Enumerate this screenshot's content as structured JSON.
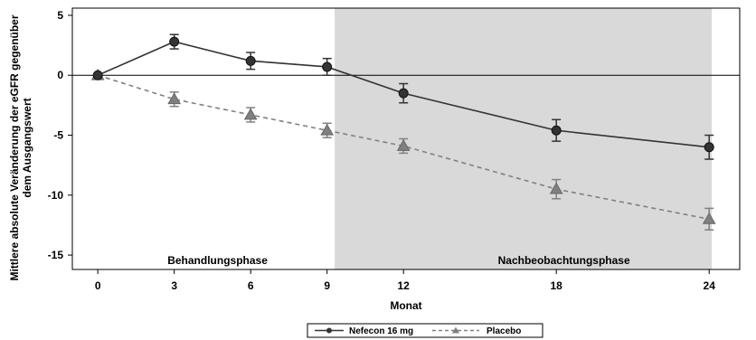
{
  "chart_data": {
    "type": "line",
    "xlabel": "Monat",
    "ylabel_lines": [
      "Mittlere absolute Veränderung der eGFR gegenüber",
      "dem Ausgangswert"
    ],
    "xlim": [
      -1,
      25.2
    ],
    "ylim": [
      -16.2,
      5.6
    ],
    "x_ticks": [
      0,
      3,
      6,
      9,
      12,
      18,
      24
    ],
    "x_tick_labels": [
      "0",
      "3",
      "6",
      "9",
      "12",
      "18",
      "24"
    ],
    "y_ticks": [
      5,
      0,
      -5,
      -10,
      -15
    ],
    "y_tick_labels": [
      "5",
      "0",
      "-5",
      "-10",
      "-15"
    ],
    "reference_line_y": 0,
    "shaded_region": {
      "x_start": 9.3,
      "x_end": 24.1,
      "color": "#d9d9d9"
    },
    "phase_labels": [
      {
        "text": "Behandlungsphase",
        "x": 4.7
      },
      {
        "text": "Nachbeobachtungsphase",
        "x": 18.3
      }
    ],
    "series": [
      {
        "name": "Nefecon 16 mg",
        "marker": "circle",
        "line_style": "solid",
        "color": "#333333",
        "x": [
          0,
          3,
          6,
          9,
          12,
          18,
          24
        ],
        "y": [
          0,
          2.8,
          1.2,
          0.7,
          -1.5,
          -4.6,
          -6.0
        ],
        "err_low": [
          0,
          2.2,
          0.5,
          0.0,
          -2.3,
          -5.5,
          -7.0
        ],
        "err_high": [
          0,
          3.4,
          1.9,
          1.4,
          -0.7,
          -3.7,
          -5.0
        ]
      },
      {
        "name": "Placebo",
        "marker": "triangle",
        "line_style": "dashed",
        "color": "#808080",
        "x": [
          0,
          3,
          6,
          9,
          12,
          18,
          24
        ],
        "y": [
          0,
          -2.0,
          -3.3,
          -4.6,
          -5.9,
          -9.5,
          -12.0
        ],
        "err_low": [
          0,
          -2.6,
          -3.9,
          -5.2,
          -6.5,
          -10.3,
          -12.9
        ],
        "err_high": [
          0,
          -1.4,
          -2.7,
          -4.0,
          -5.3,
          -8.7,
          -11.1
        ]
      }
    ]
  }
}
